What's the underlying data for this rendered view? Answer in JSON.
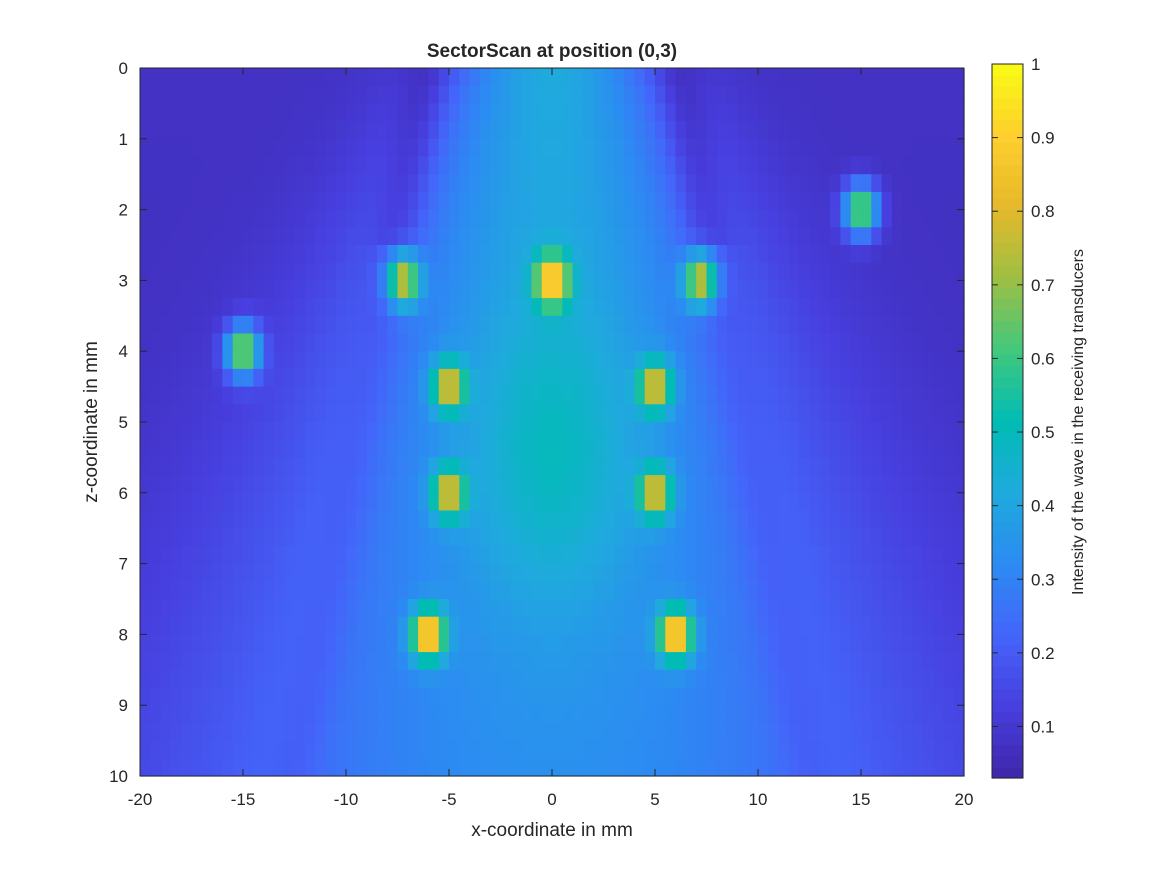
{
  "chart_data": {
    "type": "heatmap",
    "title": "SectorScan at position (0,3)",
    "xlabel": "x-coordinate in mm",
    "ylabel": "z-coordinate in mm",
    "colorbar_label": "Intensity of the wave in the receiving transducers",
    "xlim": [
      -20,
      20
    ],
    "ylim": [
      0,
      10
    ],
    "y_direction": "reversed",
    "x_ticks": [
      "-20",
      "-15",
      "-10",
      "-5",
      "0",
      "5",
      "10",
      "15",
      "20"
    ],
    "y_ticks": [
      "0",
      "1",
      "2",
      "3",
      "4",
      "5",
      "6",
      "7",
      "8",
      "9",
      "10"
    ],
    "colorbar_ticks": [
      "0.1",
      "0.2",
      "0.3",
      "0.4",
      "0.5",
      "0.6",
      "0.7",
      "0.8",
      "0.9",
      "1"
    ],
    "colorbar_range": [
      0.03,
      1.0
    ],
    "colormap": "parula",
    "grid_resolution": {
      "x_step_mm": 0.5,
      "z_step_mm": 0.25
    },
    "background": {
      "center_column_value": 0.42,
      "edge_value": 0.08,
      "central_region": {
        "x_center": 0,
        "z_center": 5.5,
        "value": 0.5
      }
    },
    "hotspots": [
      {
        "x": 0,
        "z": 3.0,
        "value": 1.0
      },
      {
        "x": -7.2,
        "z": 3.0,
        "value": 0.8
      },
      {
        "x": 7.2,
        "z": 3.0,
        "value": 0.8
      },
      {
        "x": -15,
        "z": 4.0,
        "value": 0.75
      },
      {
        "x": 15,
        "z": 2.0,
        "value": 0.72
      },
      {
        "x": -5,
        "z": 4.5,
        "value": 0.85
      },
      {
        "x": 5,
        "z": 4.5,
        "value": 0.85
      },
      {
        "x": -5,
        "z": 6.0,
        "value": 0.85
      },
      {
        "x": 5,
        "z": 6.0,
        "value": 0.85
      },
      {
        "x": -6,
        "z": 8.0,
        "value": 1.0
      },
      {
        "x": 6,
        "z": 8.0,
        "value": 1.0
      }
    ]
  }
}
